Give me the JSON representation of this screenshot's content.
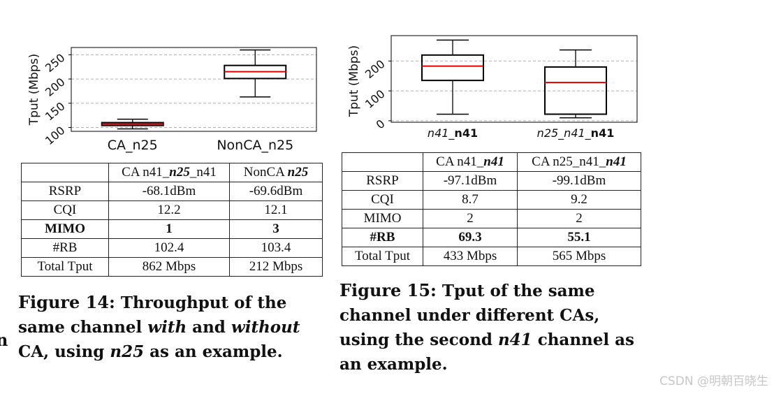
{
  "fig14": {
    "chart_data": {
      "type": "box",
      "ylabel": "Tput (Mbps)",
      "yticks": [
        100,
        150,
        200,
        250
      ],
      "ylim": [
        92,
        265
      ],
      "grid": true,
      "categories": [
        "CA_n25",
        "NonCA_n25"
      ],
      "boxes": [
        {
          "whisker_low": 97,
          "q1": 104,
          "median": 107,
          "q3": 110,
          "whisker_high": 117
        },
        {
          "whisker_low": 163,
          "q1": 201,
          "median": 215,
          "q3": 228,
          "whisker_high": 260
        }
      ]
    },
    "table": {
      "headers": [
        "",
        "CA n41_",
        "n25",
        "_n41",
        "NonCA ",
        "n25"
      ],
      "rows": [
        {
          "label": "RSRP",
          "values": [
            "-68.1dBm",
            "-69.6dBm"
          ],
          "bold": false
        },
        {
          "label": "CQI",
          "values": [
            "12.2",
            "12.1"
          ],
          "bold": false
        },
        {
          "label": "MIMO",
          "values": [
            "1",
            "3"
          ],
          "bold": true
        },
        {
          "label": "#RB",
          "values": [
            "102.4",
            "103.4"
          ],
          "bold": false
        },
        {
          "label": "Total Tput",
          "values": [
            "862 Mbps",
            "212 Mbps"
          ],
          "bold": false
        }
      ]
    },
    "caption": {
      "lead": "Figure 14:",
      "p1": " Throughput of the same channel ",
      "em1": "with",
      "p2": " and ",
      "em2": "without",
      "p3": " CA, using ",
      "em3": "n25",
      "p4": " as an example."
    }
  },
  "fig15": {
    "chart_data": {
      "type": "box",
      "ylabel": "Tput (Mbps)",
      "yticks": [
        0,
        100,
        200
      ],
      "ylim": [
        -5,
        285
      ],
      "grid": true,
      "categories": [
        {
          "plain": "n41_",
          "bold": "n41"
        },
        {
          "plain": "n25_n41_",
          "bold": "n41"
        }
      ],
      "boxes": [
        {
          "whisker_low": 22,
          "q1": 135,
          "median": 183,
          "q3": 220,
          "whisker_high": 270
        },
        {
          "whisker_low": 10,
          "q1": 22,
          "median": 128,
          "q3": 180,
          "whisker_high": 237
        }
      ]
    },
    "table": {
      "headers": [
        "",
        "CA n41_",
        "n41",
        "CA n25_n41_",
        "n41"
      ],
      "rows": [
        {
          "label": "RSRP",
          "values": [
            "-97.1dBm",
            "-99.1dBm"
          ],
          "bold": false
        },
        {
          "label": "CQI",
          "values": [
            "8.7",
            "9.2"
          ],
          "bold": false
        },
        {
          "label": "MIMO",
          "values": [
            "2",
            "2"
          ],
          "bold": false
        },
        {
          "label": "#RB",
          "values": [
            "69.3",
            "55.1"
          ],
          "bold": true
        },
        {
          "label": "Total Tput",
          "values": [
            "433 Mbps",
            "565 Mbps"
          ],
          "bold": false
        }
      ]
    },
    "caption": {
      "lead": "Figure 15:",
      "text": " Tput of the same channel under different CAs, using the second ",
      "em": "n41",
      "tail": " channel as an example."
    }
  },
  "edge_fragment": "n",
  "watermark": "CSDN @明朝百晓生",
  "colors": {
    "median": "#e00000",
    "box": "#000000",
    "grid": "#b0b0b0"
  }
}
